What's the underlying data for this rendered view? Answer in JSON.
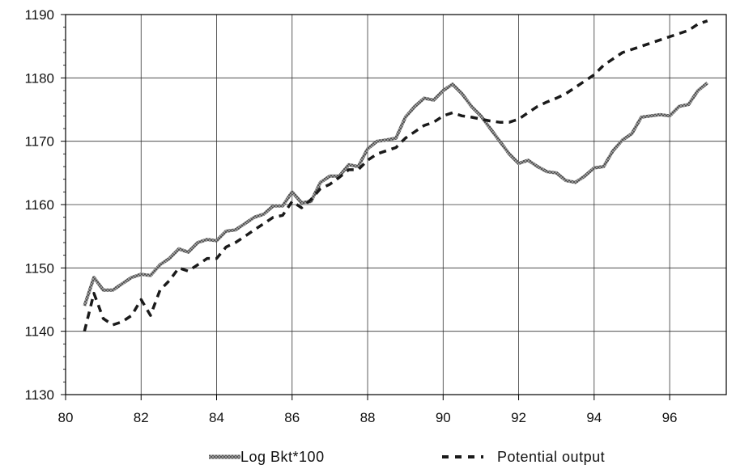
{
  "chart_data": {
    "type": "line",
    "title": "",
    "xlabel": "",
    "ylabel": "",
    "xlim": [
      80,
      97.5
    ],
    "ylim": [
      1130,
      1190
    ],
    "x_ticks": [
      80,
      82,
      84,
      86,
      88,
      90,
      92,
      94,
      96
    ],
    "y_ticks": [
      1130,
      1140,
      1150,
      1160,
      1170,
      1180,
      1190
    ],
    "x_tick_labels": [
      "80",
      "82",
      "84",
      "86",
      "88",
      "90",
      "92",
      "94",
      "96"
    ],
    "y_tick_labels": [
      "1130",
      "1140",
      "1150",
      "1160",
      "1170",
      "1180",
      "1190"
    ],
    "grid": true,
    "legend_position": "bottom",
    "series": [
      {
        "name": "Log Bkt*100",
        "style": "solid-textured",
        "color": "#777777",
        "x": [
          80.5,
          80.75,
          81.0,
          81.25,
          81.5,
          81.75,
          82.0,
          82.25,
          82.5,
          82.75,
          83.0,
          83.25,
          83.5,
          83.75,
          84.0,
          84.25,
          84.5,
          84.75,
          85.0,
          85.25,
          85.5,
          85.75,
          86.0,
          86.25,
          86.5,
          86.75,
          87.0,
          87.25,
          87.5,
          87.75,
          88.0,
          88.25,
          88.5,
          88.75,
          89.0,
          89.25,
          89.5,
          89.75,
          90.0,
          90.25,
          90.5,
          90.75,
          91.0,
          91.25,
          91.5,
          91.75,
          92.0,
          92.25,
          92.5,
          92.75,
          93.0,
          93.25,
          93.5,
          93.75,
          94.0,
          94.25,
          94.5,
          94.75,
          95.0,
          95.25,
          95.5,
          95.75,
          96.0,
          96.25,
          96.5,
          96.75,
          97.0
        ],
        "values": [
          1144,
          1148.5,
          1146.5,
          1146.5,
          1147.5,
          1148.5,
          1149,
          1148.8,
          1150.5,
          1151.5,
          1153,
          1152.5,
          1154,
          1154.5,
          1154.3,
          1155.8,
          1156,
          1157,
          1158,
          1158.5,
          1159.8,
          1159.8,
          1162,
          1160.3,
          1160.5,
          1163.5,
          1164.5,
          1164.5,
          1166.3,
          1166,
          1168.8,
          1170,
          1170.2,
          1170.5,
          1173.8,
          1175.5,
          1176.8,
          1176.5,
          1178,
          1179,
          1177.5,
          1175.5,
          1174,
          1172,
          1170,
          1168,
          1166.5,
          1167,
          1166,
          1165.2,
          1165,
          1163.8,
          1163.5,
          1164.5,
          1165.8,
          1166,
          1168.5,
          1170.2,
          1171.2,
          1173.8,
          1174,
          1174.2,
          1174,
          1175.5,
          1175.8,
          1178,
          1179.2
        ]
      },
      {
        "name": "Potential output",
        "style": "dashed",
        "color": "#1a1a1a",
        "x": [
          80.5,
          80.75,
          81.0,
          81.25,
          81.5,
          81.75,
          82.0,
          82.25,
          82.5,
          82.75,
          83.0,
          83.25,
          83.5,
          83.75,
          84.0,
          84.25,
          84.5,
          84.75,
          85.0,
          85.25,
          85.5,
          85.75,
          86.0,
          86.25,
          86.5,
          86.75,
          87.0,
          87.25,
          87.5,
          87.75,
          88.0,
          88.25,
          88.5,
          88.75,
          89.0,
          89.25,
          89.5,
          89.75,
          90.0,
          90.25,
          90.5,
          90.75,
          91.0,
          91.25,
          91.5,
          91.75,
          92.0,
          92.25,
          92.5,
          92.75,
          93.0,
          93.25,
          93.5,
          93.75,
          94.0,
          94.25,
          94.5,
          94.75,
          95.0,
          95.25,
          95.5,
          95.75,
          96.0,
          96.25,
          96.5,
          96.75,
          97.0
        ],
        "values": [
          1140,
          1146,
          1142,
          1141,
          1141.5,
          1142.5,
          1145,
          1142.5,
          1146.5,
          1148,
          1150,
          1149.5,
          1150.5,
          1151.5,
          1151.5,
          1153.3,
          1154,
          1155,
          1156,
          1157,
          1158,
          1158.3,
          1160.5,
          1159.5,
          1160.8,
          1162.5,
          1163.2,
          1164.3,
          1165.5,
          1165.5,
          1167,
          1168,
          1168.5,
          1169,
          1170.5,
          1171.5,
          1172.5,
          1173,
          1174,
          1174.5,
          1174,
          1173.8,
          1173.5,
          1173.2,
          1173,
          1173,
          1173.5,
          1174.5,
          1175.5,
          1176.2,
          1176.8,
          1177.5,
          1178.5,
          1179.5,
          1180.5,
          1182,
          1183,
          1184,
          1184.5,
          1185,
          1185.5,
          1186,
          1186.5,
          1187,
          1187.5,
          1188.5,
          1189
        ]
      }
    ]
  }
}
